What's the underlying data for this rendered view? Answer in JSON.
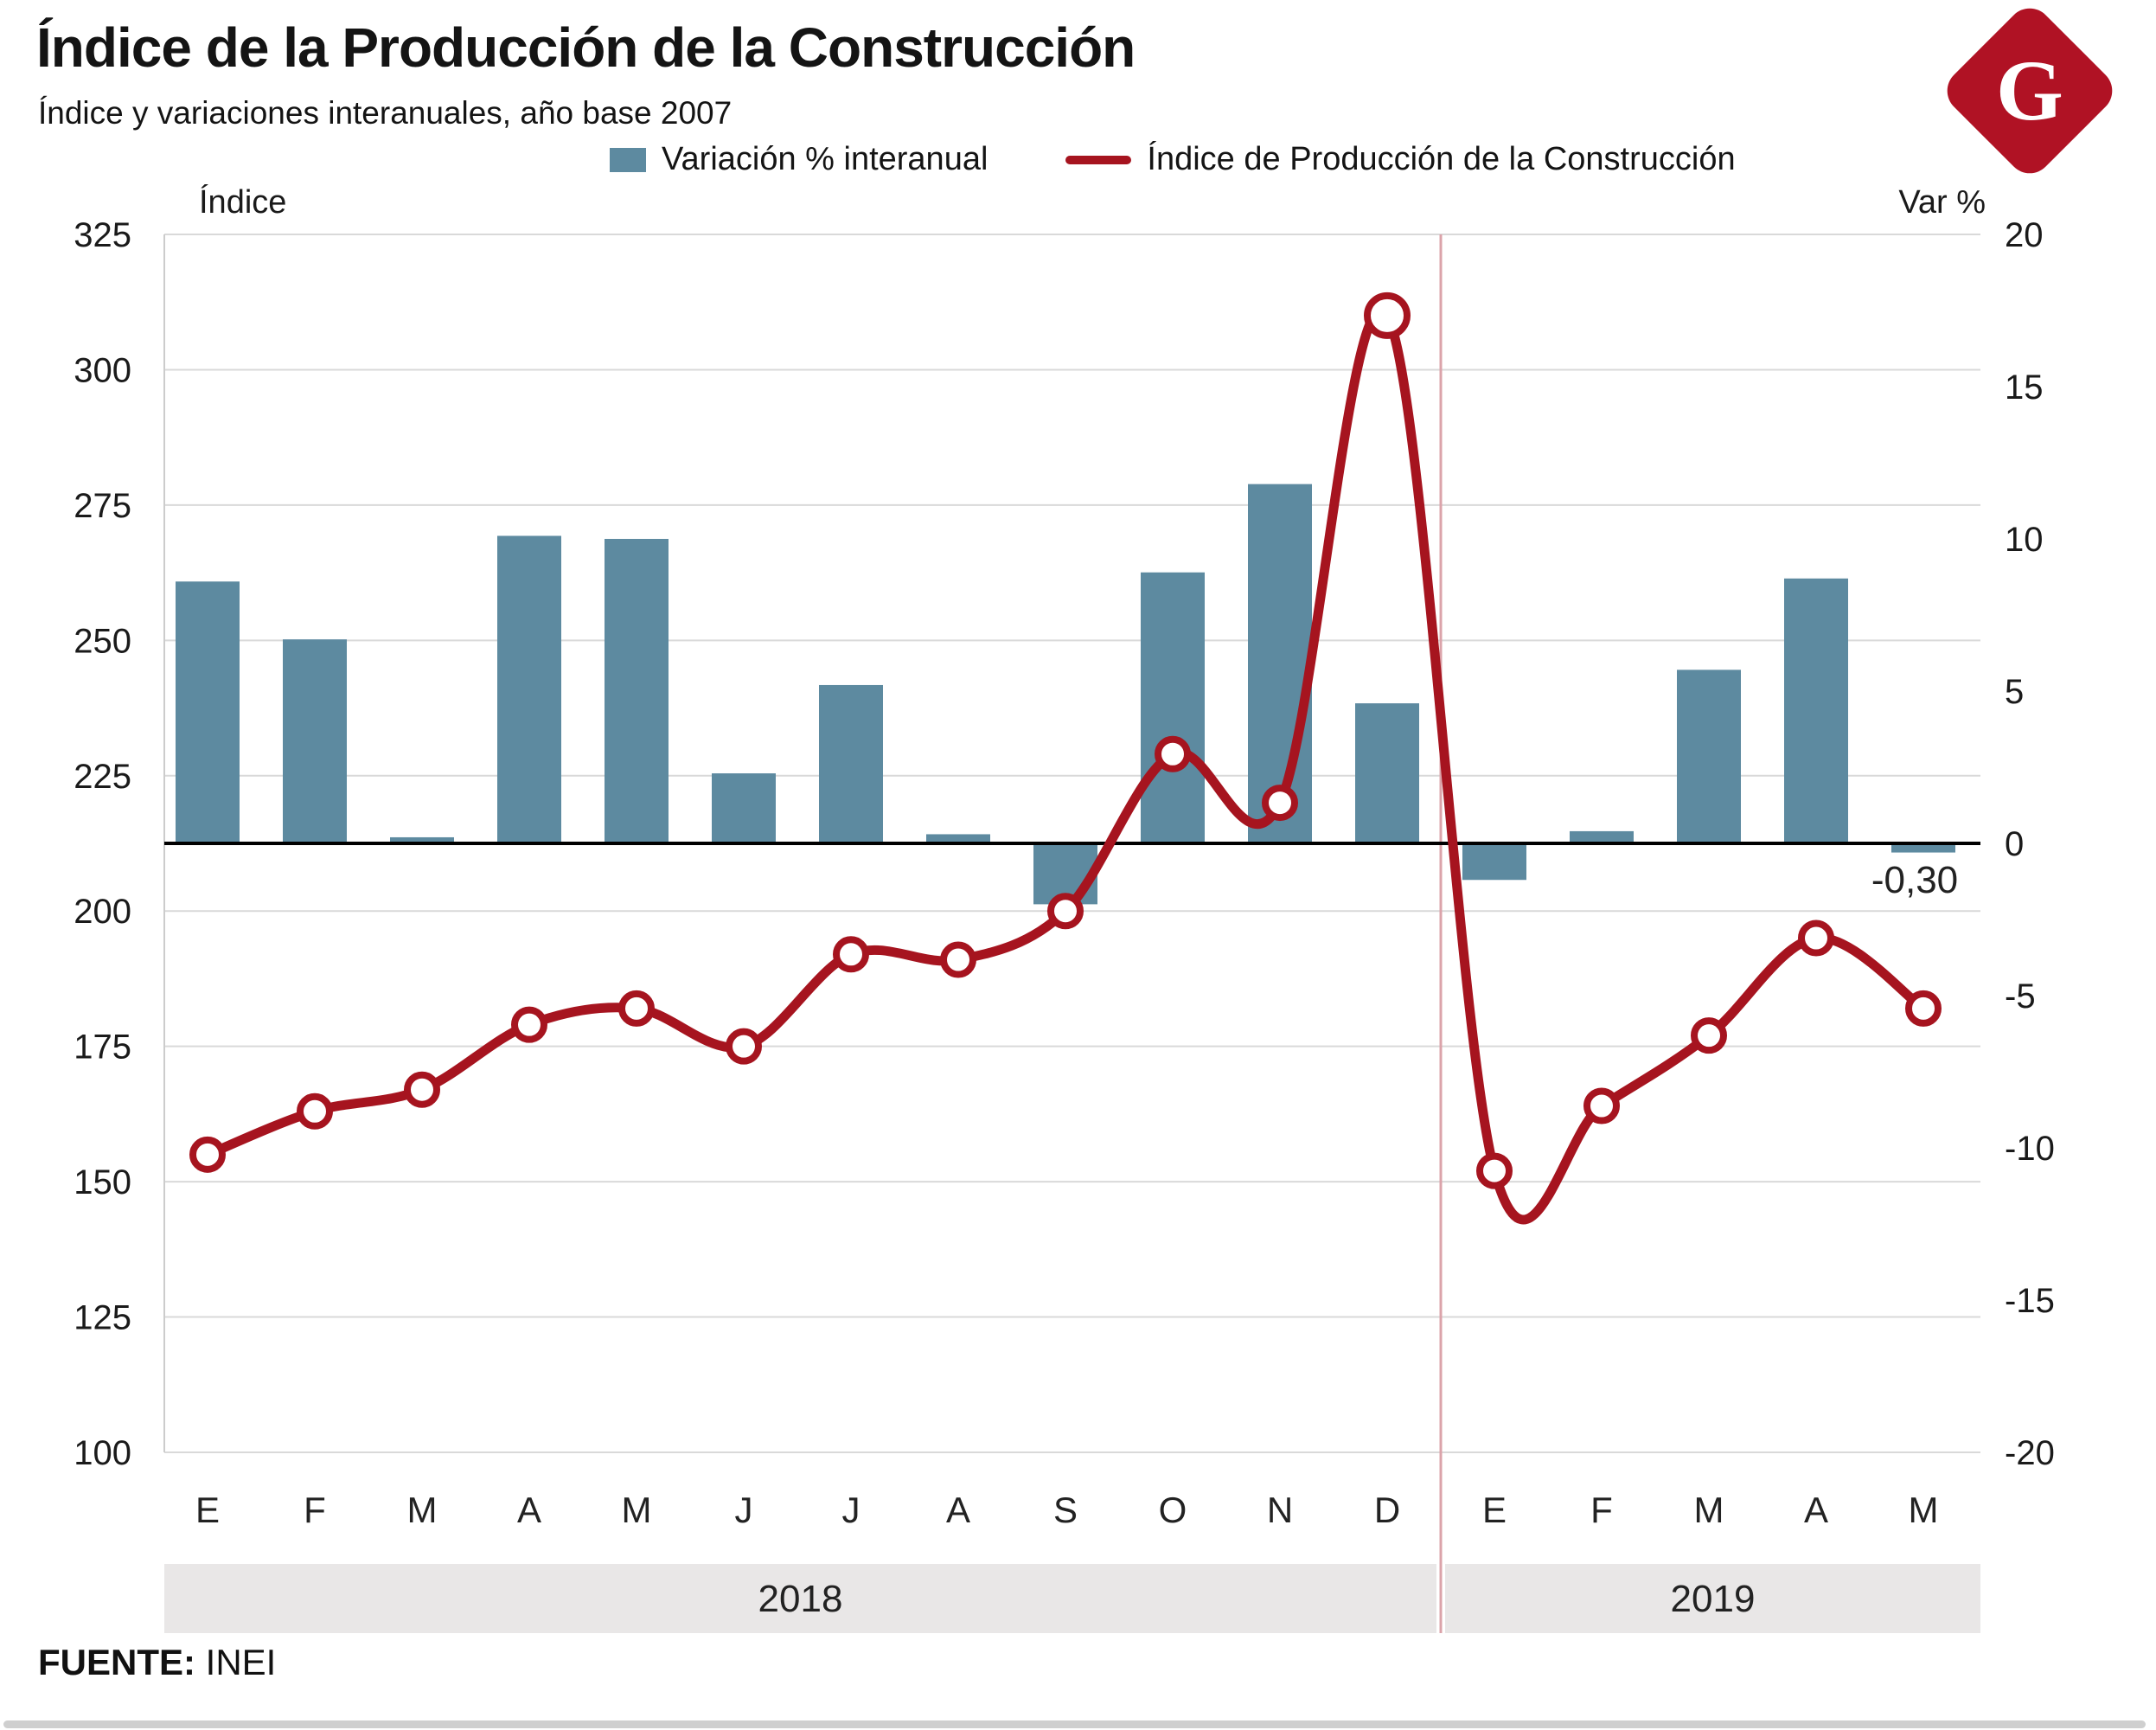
{
  "header": {
    "title": "Índice de la Producción de la Construcción",
    "subtitle": "Índice y variaciones interanuales, año base 2007",
    "logo_letter": "G"
  },
  "legend": {
    "bars_label": "Variación % interanual",
    "line_label": "Índice de Producción de la Construcción"
  },
  "footer": {
    "source_label": "FUENTE:",
    "source_value": "INEI"
  },
  "colors": {
    "bar": "#5d8aa0",
    "line": "#a6141f",
    "logo": "#b01224",
    "grid": "#d9d9d9",
    "axis_line": "#cccccc",
    "zero_line": "#000000",
    "separator": "#dba3aa",
    "year_band": "#e9e7e7",
    "text": "#1a1a1a",
    "marker_fill": "#ffffff"
  },
  "chart_data": {
    "type": "bar",
    "subtype": "combo bar+line, dual axis",
    "title": "Índice de la Producción de la Construcción",
    "subtitle": "Índice y variaciones interanuales, año base 2007",
    "categories": [
      "E",
      "F",
      "M",
      "A",
      "M",
      "J",
      "J",
      "A",
      "S",
      "O",
      "N",
      "D",
      "E",
      "F",
      "M",
      "A",
      "M"
    ],
    "year_groups": [
      {
        "label": "2018",
        "from": 0,
        "to": 11
      },
      {
        "label": "2019",
        "from": 12,
        "to": 16
      }
    ],
    "series": [
      {
        "name": "Variación % interanual",
        "type": "bar",
        "axis": "right",
        "values": [
          8.6,
          6.7,
          0.2,
          10.1,
          10.0,
          2.3,
          5.2,
          0.3,
          -2.0,
          8.9,
          11.8,
          4.6,
          -1.2,
          0.4,
          5.7,
          8.7,
          -0.3
        ]
      },
      {
        "name": "Índice de Producción de la Construcción",
        "type": "line",
        "axis": "left",
        "values": [
          155,
          163,
          167,
          179,
          182,
          175,
          192,
          191,
          200,
          229,
          220,
          310,
          152,
          164,
          177,
          195,
          182
        ]
      }
    ],
    "left_axis": {
      "title": "Índice",
      "min": 100,
      "max": 325,
      "ticks": [
        325,
        300,
        275,
        250,
        225,
        200,
        175,
        150,
        125,
        100
      ]
    },
    "right_axis": {
      "title": "Var %",
      "min": -20,
      "max": 20,
      "ticks": [
        20,
        15,
        10,
        5,
        0,
        -5,
        -10,
        -15,
        -20
      ]
    },
    "annotation": {
      "text": "-0,30",
      "month_index": 16,
      "refers_to": "Variación % interanual mayo 2019"
    },
    "grid": true,
    "legend_position": "top"
  }
}
